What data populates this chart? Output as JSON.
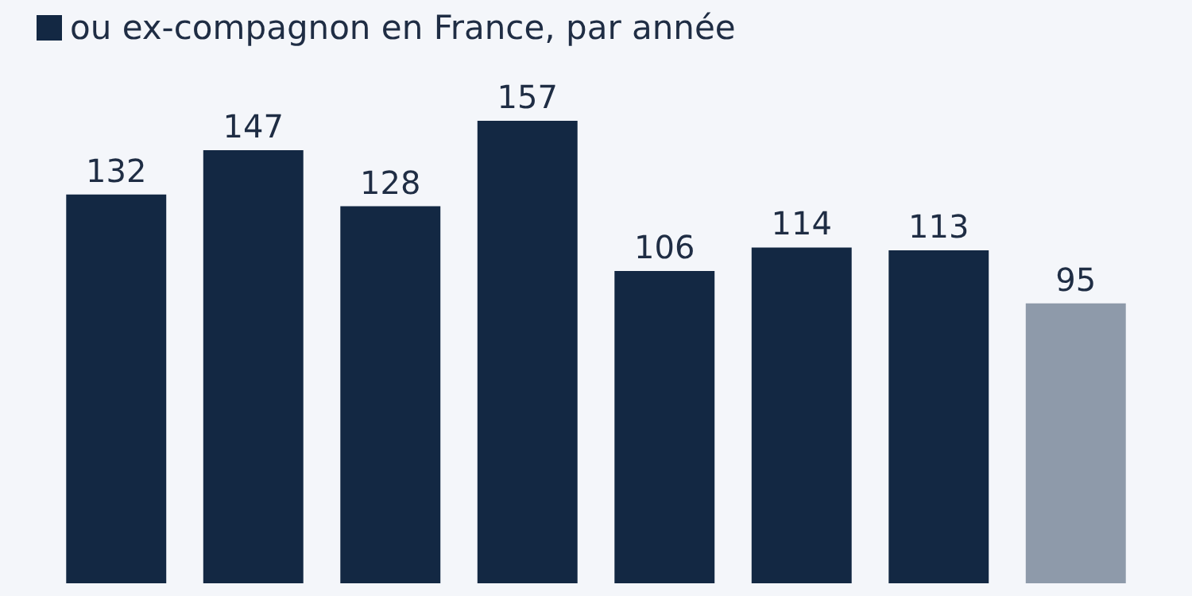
{
  "chart_data": {
    "type": "bar",
    "categories": [
      null,
      null,
      null,
      null,
      null,
      null,
      null,
      null
    ],
    "series": [
      {
        "name": "ou ex-compagnon en France, par année",
        "color": "#132843",
        "colors": [
          "#132843",
          "#132843",
          "#132843",
          "#132843",
          "#132843",
          "#132843",
          "#132843",
          "#8e9aaa"
        ],
        "values": [
          132,
          147,
          128,
          157,
          106,
          114,
          113,
          95
        ]
      }
    ],
    "data_labels": true,
    "legend": "top left"
  }
}
